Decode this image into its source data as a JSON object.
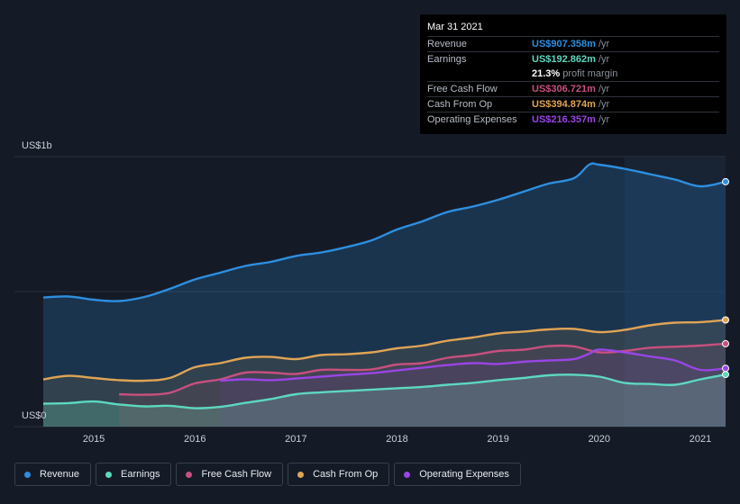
{
  "tooltip": {
    "date": "Mar 31 2021",
    "rows": [
      {
        "label": "Revenue",
        "value": "US$907.358m",
        "unit": "/yr",
        "color": "#2d8fe0"
      },
      {
        "label": "Earnings",
        "value": "US$192.862m",
        "unit": "/yr",
        "color": "#5dd8c0"
      },
      {
        "label": "",
        "value": "21.3%",
        "unit": "profit margin",
        "color": "#ffffff"
      },
      {
        "label": "Free Cash Flow",
        "value": "US$306.721m",
        "unit": "/yr",
        "color": "#c8507e"
      },
      {
        "label": "Cash From Op",
        "value": "US$394.874m",
        "unit": "/yr",
        "color": "#e0a455"
      },
      {
        "label": "Operating Expenses",
        "value": "US$216.357m",
        "unit": "/yr",
        "color": "#9a45e6"
      }
    ]
  },
  "legend": [
    {
      "label": "Revenue",
      "color": "#2d8fe0"
    },
    {
      "label": "Earnings",
      "color": "#5dd8c0"
    },
    {
      "label": "Free Cash Flow",
      "color": "#c8507e"
    },
    {
      "label": "Cash From Op",
      "color": "#e0a455"
    },
    {
      "label": "Operating Expenses",
      "color": "#9a45e6"
    }
  ],
  "chart_data": {
    "type": "area",
    "title": "",
    "ylabel_top": "US$1b",
    "ylabel_bottom": "US$0",
    "ylim": [
      0,
      1000
    ],
    "xlim": [
      2014.5,
      2021.25
    ],
    "x_ticks": [
      2015,
      2016,
      2017,
      2018,
      2019,
      2020,
      2021
    ],
    "x_tick_labels": [
      "2015",
      "2016",
      "2017",
      "2018",
      "2019",
      "2020",
      "2021"
    ],
    "highlight_from": 2020.25,
    "series": [
      {
        "name": "Revenue",
        "color": "#2d8fe0",
        "points": [
          [
            2014.5,
            478
          ],
          [
            2014.75,
            482
          ],
          [
            2015.0,
            470
          ],
          [
            2015.25,
            465
          ],
          [
            2015.5,
            480
          ],
          [
            2015.75,
            510
          ],
          [
            2016.0,
            545
          ],
          [
            2016.25,
            570
          ],
          [
            2016.5,
            595
          ],
          [
            2016.75,
            610
          ],
          [
            2017.0,
            632
          ],
          [
            2017.25,
            645
          ],
          [
            2017.5,
            665
          ],
          [
            2017.75,
            690
          ],
          [
            2018.0,
            730
          ],
          [
            2018.25,
            760
          ],
          [
            2018.5,
            795
          ],
          [
            2018.75,
            815
          ],
          [
            2019.0,
            840
          ],
          [
            2019.25,
            870
          ],
          [
            2019.5,
            900
          ],
          [
            2019.75,
            920
          ],
          [
            2019.9,
            970
          ],
          [
            2020.0,
            970
          ],
          [
            2020.25,
            955
          ],
          [
            2020.5,
            935
          ],
          [
            2020.75,
            915
          ],
          [
            2021.0,
            890
          ],
          [
            2021.25,
            907
          ]
        ]
      },
      {
        "name": "Earnings",
        "color": "#5dd8c0",
        "points": [
          [
            2014.5,
            85
          ],
          [
            2014.75,
            87
          ],
          [
            2015.0,
            93
          ],
          [
            2015.25,
            82
          ],
          [
            2015.5,
            75
          ],
          [
            2015.75,
            77
          ],
          [
            2016.0,
            68
          ],
          [
            2016.25,
            73
          ],
          [
            2016.5,
            88
          ],
          [
            2016.75,
            102
          ],
          [
            2017.0,
            120
          ],
          [
            2017.25,
            127
          ],
          [
            2017.5,
            132
          ],
          [
            2017.75,
            137
          ],
          [
            2018.0,
            142
          ],
          [
            2018.25,
            147
          ],
          [
            2018.5,
            155
          ],
          [
            2018.75,
            162
          ],
          [
            2019.0,
            172
          ],
          [
            2019.25,
            180
          ],
          [
            2019.5,
            190
          ],
          [
            2019.75,
            192
          ],
          [
            2020.0,
            185
          ],
          [
            2020.25,
            162
          ],
          [
            2020.5,
            158
          ],
          [
            2020.75,
            155
          ],
          [
            2021.0,
            175
          ],
          [
            2021.25,
            193
          ]
        ]
      },
      {
        "name": "Free Cash Flow",
        "color": "#c8507e",
        "points": [
          [
            2015.25,
            120
          ],
          [
            2015.5,
            118
          ],
          [
            2015.75,
            125
          ],
          [
            2016.0,
            160
          ],
          [
            2016.25,
            175
          ],
          [
            2016.5,
            200
          ],
          [
            2016.75,
            200
          ],
          [
            2017.0,
            195
          ],
          [
            2017.25,
            210
          ],
          [
            2017.5,
            210
          ],
          [
            2017.75,
            212
          ],
          [
            2018.0,
            230
          ],
          [
            2018.25,
            235
          ],
          [
            2018.5,
            255
          ],
          [
            2018.75,
            265
          ],
          [
            2019.0,
            280
          ],
          [
            2019.25,
            285
          ],
          [
            2019.5,
            298
          ],
          [
            2019.75,
            297
          ],
          [
            2020.0,
            275
          ],
          [
            2020.25,
            280
          ],
          [
            2020.5,
            292
          ],
          [
            2020.75,
            296
          ],
          [
            2021.0,
            300
          ],
          [
            2021.25,
            307
          ]
        ]
      },
      {
        "name": "Cash From Op",
        "color": "#e0a455",
        "points": [
          [
            2014.5,
            175
          ],
          [
            2014.75,
            188
          ],
          [
            2015.0,
            180
          ],
          [
            2015.25,
            172
          ],
          [
            2015.5,
            170
          ],
          [
            2015.75,
            180
          ],
          [
            2016.0,
            220
          ],
          [
            2016.25,
            235
          ],
          [
            2016.5,
            255
          ],
          [
            2016.75,
            258
          ],
          [
            2017.0,
            250
          ],
          [
            2017.25,
            265
          ],
          [
            2017.5,
            268
          ],
          [
            2017.75,
            275
          ],
          [
            2018.0,
            290
          ],
          [
            2018.25,
            300
          ],
          [
            2018.5,
            318
          ],
          [
            2018.75,
            330
          ],
          [
            2019.0,
            345
          ],
          [
            2019.25,
            352
          ],
          [
            2019.5,
            360
          ],
          [
            2019.75,
            362
          ],
          [
            2020.0,
            350
          ],
          [
            2020.25,
            358
          ],
          [
            2020.5,
            375
          ],
          [
            2020.75,
            385
          ],
          [
            2021.0,
            387
          ],
          [
            2021.25,
            395
          ]
        ]
      },
      {
        "name": "Operating Expenses",
        "color": "#9a45e6",
        "points": [
          [
            2016.25,
            170
          ],
          [
            2016.5,
            175
          ],
          [
            2016.75,
            172
          ],
          [
            2017.0,
            178
          ],
          [
            2017.25,
            185
          ],
          [
            2017.5,
            192
          ],
          [
            2017.75,
            198
          ],
          [
            2018.0,
            208
          ],
          [
            2018.25,
            218
          ],
          [
            2018.5,
            228
          ],
          [
            2018.75,
            235
          ],
          [
            2019.0,
            232
          ],
          [
            2019.25,
            240
          ],
          [
            2019.5,
            245
          ],
          [
            2019.75,
            250
          ],
          [
            2019.9,
            270
          ],
          [
            2020.0,
            285
          ],
          [
            2020.25,
            275
          ],
          [
            2020.5,
            260
          ],
          [
            2020.75,
            245
          ],
          [
            2021.0,
            210
          ],
          [
            2021.25,
            216
          ]
        ]
      }
    ]
  }
}
